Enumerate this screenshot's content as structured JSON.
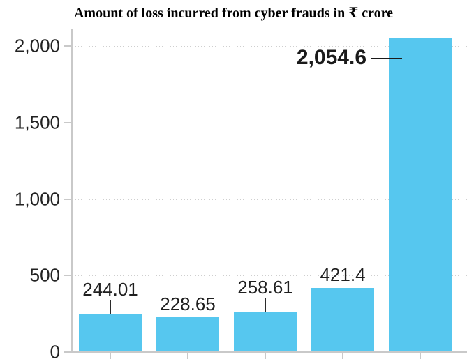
{
  "title": "Amount of loss incurred from cyber frauds in ₹ crore",
  "colors": {
    "background": "#ffffff",
    "bar": "#56c7ef",
    "axis": "#c9c9c9",
    "grid": "#cfcfcf",
    "tick_label": "#222222",
    "value_label": "#1f1f1f",
    "callout_line": "#2b2b2b",
    "emphasis_label": "#1a1a1a",
    "title_color": "#000000"
  },
  "chart_data": {
    "type": "bar",
    "title": "Amount of loss incurred from cyber frauds in ₹ crore",
    "unit": "₹ crore",
    "categories": [
      "",
      "",
      "",
      "",
      ""
    ],
    "values": [
      244.01,
      228.65,
      258.61,
      421.4,
      2054.6
    ],
    "bars": [
      {
        "value": 244.01,
        "label": "244.01",
        "callout": "vline"
      },
      {
        "value": 228.65,
        "label": "228.65",
        "callout": "none"
      },
      {
        "value": 258.61,
        "label": "258.61",
        "callout": "vline"
      },
      {
        "value": 421.4,
        "label": "421.4",
        "callout": "none"
      },
      {
        "value": 2054.6,
        "label": "2,054.6",
        "callout": "hline-left"
      }
    ],
    "xlabel": "",
    "ylabel": "",
    "ylim": [
      0,
      2110
    ],
    "yticks": [
      {
        "value": 0,
        "label": "0"
      },
      {
        "value": 500,
        "label": "500"
      },
      {
        "value": 1000,
        "label": "1,000"
      },
      {
        "value": 1500,
        "label": "1,500"
      },
      {
        "value": 2000,
        "label": "2,000"
      }
    ],
    "grid": "horizontal-dotted",
    "legend": "none",
    "x_axis_note": "category labels cropped out of view"
  }
}
